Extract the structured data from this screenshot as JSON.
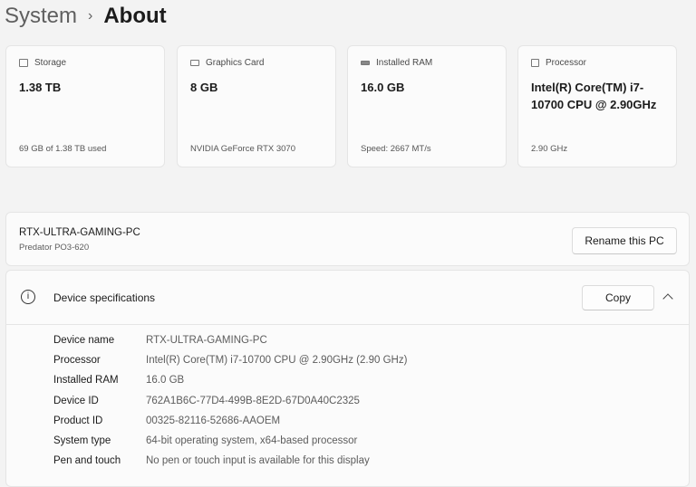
{
  "breadcrumb": {
    "parent": "System",
    "separator": "›",
    "current": "About"
  },
  "cards": [
    {
      "icon": "storage-icon",
      "label": "Storage",
      "value": "1.38 TB",
      "sub": "69 GB of 1.38 TB used"
    },
    {
      "icon": "graphics-card-icon",
      "label": "Graphics Card",
      "value": "8 GB",
      "sub": "NVIDIA GeForce RTX 3070"
    },
    {
      "icon": "ram-icon",
      "label": "Installed RAM",
      "value": "16.0 GB",
      "sub": "Speed: 2667 MT/s"
    },
    {
      "icon": "processor-icon",
      "label": "Processor",
      "value": "Intel(R) Core(TM) i7-10700 CPU @ 2.90GHz",
      "sub": "2.90 GHz"
    }
  ],
  "pc": {
    "name": "RTX-ULTRA-GAMING-PC",
    "model": "Predator PO3-620",
    "rename_label": "Rename this PC"
  },
  "specs": {
    "title": "Device specifications",
    "copy_label": "Copy",
    "rows": [
      {
        "k": "Device name",
        "v": "RTX-ULTRA-GAMING-PC"
      },
      {
        "k": "Processor",
        "v": "Intel(R) Core(TM) i7-10700 CPU @ 2.90GHz (2.90 GHz)"
      },
      {
        "k": "Installed RAM",
        "v": "16.0 GB"
      },
      {
        "k": "Device ID",
        "v": "762A1B6C-77D4-499B-8E2D-67D0A40C2325"
      },
      {
        "k": "Product ID",
        "v": "00325-82116-52686-AAOEM"
      },
      {
        "k": "System type",
        "v": "64-bit operating system, x64-based processor"
      },
      {
        "k": "Pen and touch",
        "v": "No pen or touch input is available for this display"
      }
    ]
  }
}
